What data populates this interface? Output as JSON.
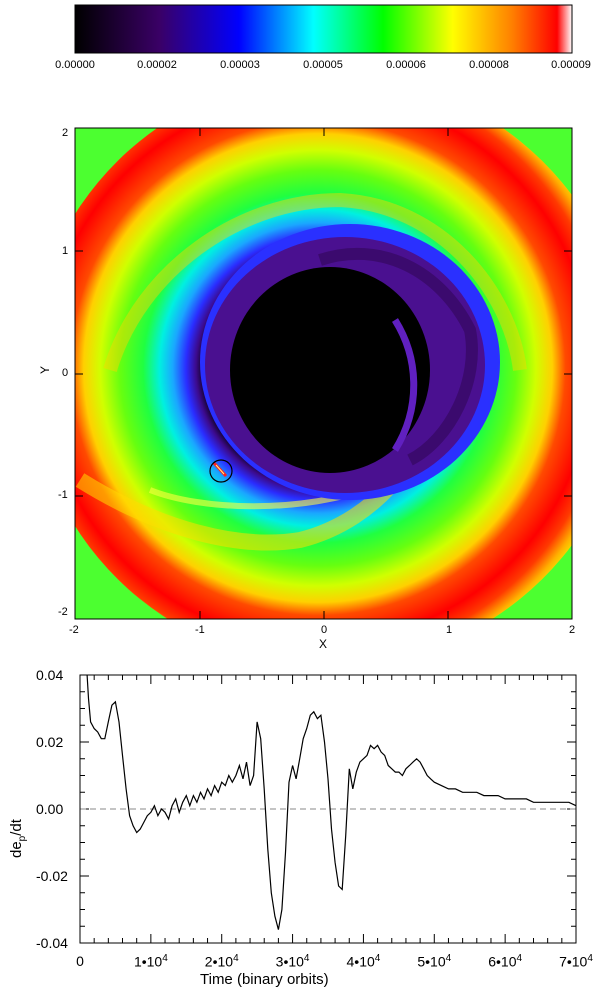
{
  "colorbar": {
    "ticks": [
      "0.00000",
      "0.00002",
      "0.00003",
      "0.00005",
      "0.00006",
      "0.00008",
      "0.00009"
    ],
    "range": [
      0,
      9e-05
    ],
    "colors": [
      "#000000",
      "#3a0066",
      "#0000ff",
      "#00ffff",
      "#00ff00",
      "#ffff00",
      "#ff0000"
    ]
  },
  "map": {
    "xlabel": "X",
    "ylabel": "Y",
    "xticks": [
      "-2",
      "-1",
      "0",
      "1",
      "2"
    ],
    "yticks": [
      "2",
      "1",
      "0",
      "-1",
      "-2"
    ],
    "xlim": [
      -2,
      2
    ],
    "ylim": [
      -2,
      2
    ],
    "planet": {
      "x": -0.82,
      "y": -0.8
    }
  },
  "chart_data": {
    "type": "line",
    "title": "",
    "xlabel": "Time (binary orbits)",
    "ylabel": "de_p/dt",
    "ylabel_main": "de",
    "ylabel_sub": "p",
    "ylabel_tail": "/dt",
    "xlim": [
      0,
      70000
    ],
    "ylim": [
      -0.04,
      0.04
    ],
    "xticks": [
      {
        "v": 0,
        "label": "0"
      },
      {
        "v": 10000,
        "label": "1•10",
        "exp": "4"
      },
      {
        "v": 20000,
        "label": "2•10",
        "exp": "4"
      },
      {
        "v": 30000,
        "label": "3•10",
        "exp": "4"
      },
      {
        "v": 40000,
        "label": "4•10",
        "exp": "4"
      },
      {
        "v": 50000,
        "label": "5•10",
        "exp": "4"
      },
      {
        "v": 60000,
        "label": "6•10",
        "exp": "4"
      },
      {
        "v": 70000,
        "label": "7•10",
        "exp": "4"
      }
    ],
    "yticks": [
      {
        "v": 0.04,
        "label": "0.04"
      },
      {
        "v": 0.02,
        "label": "0.02"
      },
      {
        "v": 0.0,
        "label": "0.00"
      },
      {
        "v": -0.02,
        "label": "-0.02"
      },
      {
        "v": -0.04,
        "label": "-0.04"
      }
    ],
    "zero_line": 0,
    "x": [
      1000,
      1200,
      1500,
      2000,
      2500,
      3000,
      3500,
      4000,
      4500,
      5000,
      5500,
      6000,
      6500,
      7000,
      7500,
      8000,
      8500,
      9000,
      9500,
      10000,
      10500,
      11000,
      11500,
      12000,
      12500,
      13000,
      13500,
      14000,
      14500,
      15000,
      15500,
      16000,
      16500,
      17000,
      17500,
      18000,
      18500,
      19000,
      19500,
      20000,
      20500,
      21000,
      21500,
      22000,
      22500,
      23000,
      23500,
      24000,
      24500,
      25000,
      25500,
      26000,
      26500,
      27000,
      27500,
      28000,
      28500,
      29000,
      29500,
      30000,
      30500,
      31000,
      31500,
      32000,
      32500,
      33000,
      33500,
      34000,
      34500,
      35000,
      35500,
      36000,
      36500,
      37000,
      37500,
      38000,
      38500,
      39000,
      39500,
      40000,
      40500,
      41000,
      41500,
      42000,
      42500,
      43000,
      43500,
      44000,
      44500,
      45000,
      45500,
      46000,
      46500,
      47000,
      47500,
      48000,
      48500,
      49000,
      49500,
      50000,
      51000,
      52000,
      53000,
      54000,
      55000,
      56000,
      57000,
      58000,
      59000,
      60000,
      61000,
      62000,
      63000,
      64000,
      65000,
      66000,
      67000,
      68000,
      69000,
      70000
    ],
    "y": [
      0.04,
      0.033,
      0.026,
      0.024,
      0.023,
      0.021,
      0.021,
      0.026,
      0.031,
      0.032,
      0.026,
      0.016,
      0.006,
      -0.002,
      -0.005,
      -0.007,
      -0.006,
      -0.004,
      -0.002,
      -0.001,
      0.001,
      -0.002,
      0.0,
      -0.001,
      -0.003,
      0.001,
      0.003,
      -0.001,
      0.002,
      0.004,
      0.001,
      0.004,
      0.002,
      0.005,
      0.003,
      0.006,
      0.004,
      0.007,
      0.005,
      0.008,
      0.007,
      0.01,
      0.008,
      0.01,
      0.013,
      0.009,
      0.014,
      0.007,
      0.01,
      0.026,
      0.021,
      0.006,
      -0.012,
      -0.025,
      -0.032,
      -0.036,
      -0.03,
      -0.013,
      0.008,
      0.013,
      0.009,
      0.015,
      0.021,
      0.024,
      0.028,
      0.029,
      0.027,
      0.028,
      0.02,
      0.009,
      -0.006,
      -0.016,
      -0.023,
      -0.024,
      -0.008,
      0.012,
      0.006,
      0.011,
      0.014,
      0.015,
      0.016,
      0.019,
      0.018,
      0.019,
      0.017,
      0.016,
      0.013,
      0.012,
      0.011,
      0.011,
      0.01,
      0.012,
      0.013,
      0.014,
      0.015,
      0.014,
      0.012,
      0.01,
      0.009,
      0.008,
      0.007,
      0.006,
      0.006,
      0.005,
      0.005,
      0.005,
      0.004,
      0.004,
      0.004,
      0.003,
      0.003,
      0.003,
      0.003,
      0.002,
      0.002,
      0.002,
      0.002,
      0.002,
      0.002,
      0.001
    ]
  }
}
